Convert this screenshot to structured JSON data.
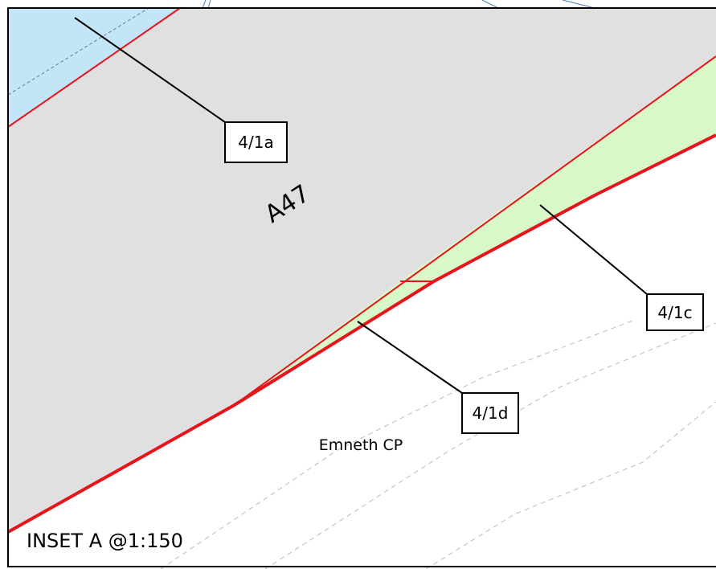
{
  "map": {
    "inset_title": "INSET A @1:150",
    "road_label": "A47",
    "parish_label": "Emneth CP",
    "plots": [
      {
        "id": "4/1a"
      },
      {
        "id": "4/1c"
      },
      {
        "id": "4/1d"
      }
    ],
    "colors": {
      "road": "#e0e0e0",
      "water": "#c2e6f8",
      "plot_green": "#d8f8c8",
      "boundary": "#e8141c",
      "frame": "#000000"
    }
  }
}
